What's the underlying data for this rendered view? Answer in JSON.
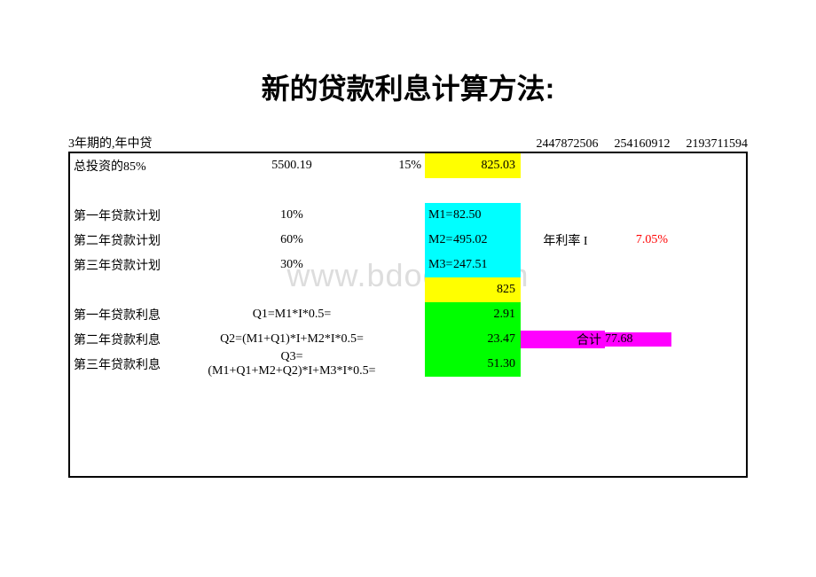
{
  "title": "新的贷款利息计算方法:",
  "watermark": "www.bdocx.com",
  "header": {
    "left": "3年期的,年中贷",
    "numbers": [
      "2447872506",
      "254160912",
      "2193711594"
    ]
  },
  "row_investment": {
    "label": "总投资的85%",
    "value": "5500.19",
    "pct": "15%",
    "amount": "825.03"
  },
  "loan_plans": [
    {
      "label": "第一年贷款计划",
      "pct": "10%",
      "m_prefix": "M1=",
      "m_value": "82.50"
    },
    {
      "label": "第二年贷款计划",
      "pct": "60%",
      "m_prefix": "M2=",
      "m_value": "495.02"
    },
    {
      "label": "第三年贷款计划",
      "pct": "30%",
      "m_prefix": "M3=",
      "m_value": "247.51"
    }
  ],
  "rate_label": "年利率 I",
  "rate_value": "7.05%",
  "sum_825": "825",
  "interest": [
    {
      "label": "第一年贷款利息",
      "formula": "Q1=M1*I*0.5=",
      "value": "2.91"
    },
    {
      "label": "第二年贷款利息",
      "formula": "Q2=(M1+Q1)*I+M2*I*0.5=",
      "value": "23.47"
    },
    {
      "label": "第三年贷款利息",
      "formula": "Q3=(M1+Q1+M2+Q2)*I+M3*I*0.5=",
      "value": "51.30"
    }
  ],
  "total_label": "合计",
  "total_value": "77.68",
  "colors": {
    "yellow": "#ffff00",
    "cyan": "#00ffff",
    "green": "#00ff00",
    "magenta": "#ff00ff",
    "red": "#ff0000",
    "border": "#000000",
    "background": "#ffffff"
  }
}
